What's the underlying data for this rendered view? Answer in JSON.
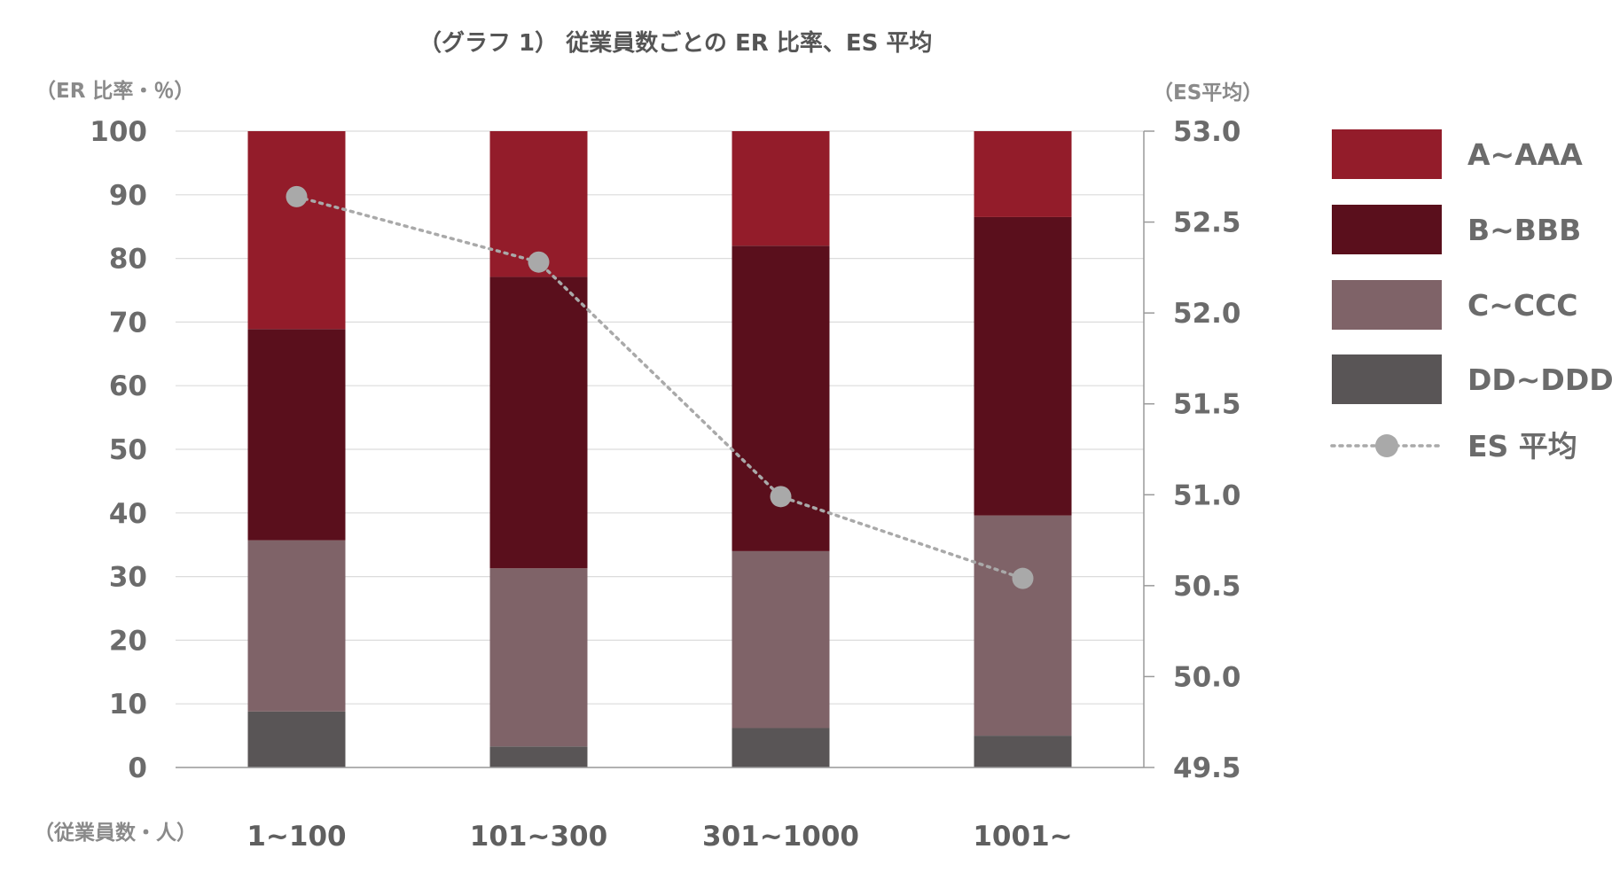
{
  "chart_data": {
    "type": "bar",
    "stacked": true,
    "title": "（グラフ 1） 従業員数ごとの ER 比率、ES 平均",
    "ylabel": "（ER 比率・％）",
    "y2label": "（ES平均）",
    "xlabel": "（従業員数・人）",
    "categories": [
      "1~100",
      "101~300",
      "301~1000",
      "1001~"
    ],
    "ylim": [
      0,
      100
    ],
    "yticks": [
      "0",
      "10",
      "20",
      "30",
      "40",
      "50",
      "60",
      "70",
      "80",
      "90",
      "100"
    ],
    "y2lim": [
      49.5,
      53.0
    ],
    "y2ticks": [
      "49.5",
      "50.0",
      "50.5",
      "51.0",
      "51.5",
      "52.0",
      "52.5",
      "53.0"
    ],
    "series": [
      {
        "name": "DD~DDD",
        "color": "#595556",
        "values": [
          8.8,
          3.3,
          6.2,
          5.0
        ]
      },
      {
        "name": "C~CCC",
        "color": "#7f6368",
        "values": [
          26.9,
          28.0,
          27.8,
          34.6
        ]
      },
      {
        "name": "B~BBB",
        "color": "#5a0f1c",
        "values": [
          33.2,
          45.8,
          48.0,
          46.9
        ]
      },
      {
        "name": "A~AAA",
        "color": "#931c2a",
        "values": [
          31.1,
          22.9,
          18.0,
          13.5
        ]
      }
    ],
    "line_series": {
      "name": "ES 平均",
      "color": "#a9a9a9",
      "values": [
        52.64,
        52.28,
        50.99,
        50.54
      ]
    },
    "legend_order": [
      "A~AAA",
      "B~BBB",
      "C~CCC",
      "DD~DDD",
      "ES 平均"
    ],
    "legend_position": "right",
    "grid": true
  }
}
